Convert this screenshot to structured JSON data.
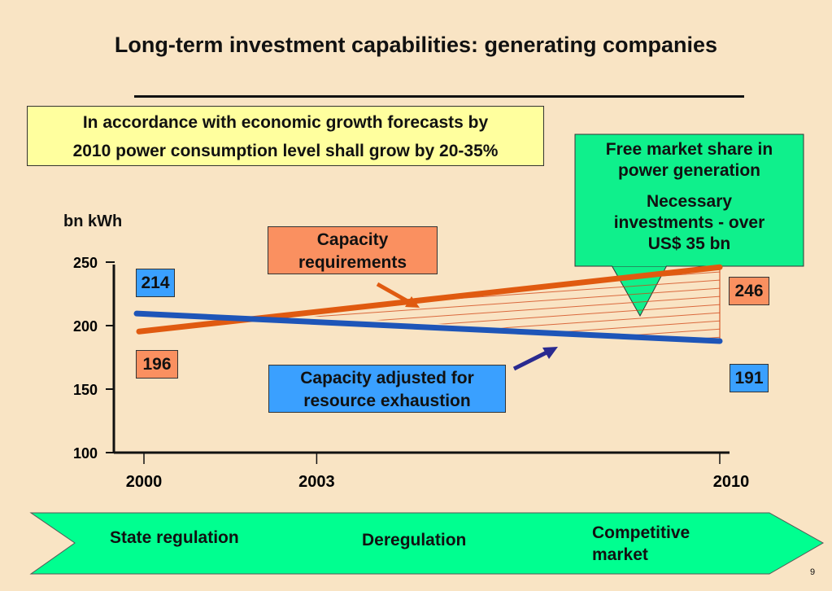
{
  "slide": {
    "title": "Long-term investment capabilities: generating companies",
    "note": {
      "line1": "In accordance with economic growth forecasts by",
      "line2": "2010 power consumption level shall grow by 20-35%"
    },
    "callout": {
      "line1": "Free market share in",
      "line2": "power generation",
      "line3": "Necessary",
      "line4": "investments - over",
      "line5": "US$ 35 bn"
    },
    "capacity_req_label": {
      "line1": "Capacity",
      "line2": "requirements"
    },
    "capacity_adj_label": {
      "line1": "Capacity adjusted for",
      "line2": "resource exhaustion"
    },
    "phases": {
      "state": "State regulation",
      "dereg": "Deregulation",
      "comp1": "Competitive",
      "comp2": "market"
    },
    "page_number": "9",
    "colors": {
      "requirements": "#e05a10",
      "adjusted": "#1e55b8",
      "callout_fill": "#0ff08c",
      "req_box": "#fa9060",
      "adj_box": "#3aa0ff",
      "arrow_band": "#00ff90"
    }
  },
  "chart_data": {
    "type": "line",
    "ylabel": "bn kWh",
    "xlabel": "",
    "x": [
      2000,
      2003,
      2010
    ],
    "x_ticks": [
      "2000",
      "2003",
      "2010"
    ],
    "y_ticks": [
      "250",
      "200",
      "150",
      "100"
    ],
    "ylim": [
      100,
      250
    ],
    "xlim": [
      2000,
      2010
    ],
    "series": [
      {
        "name": "Capacity requirements",
        "points": [
          [
            2000,
            196
          ],
          [
            2010,
            246
          ]
        ],
        "start_label": "196",
        "end_label": "246"
      },
      {
        "name": "Capacity adjusted for resource exhaustion",
        "points": [
          [
            2000,
            214
          ],
          [
            2010,
            191
          ]
        ],
        "start_label": "214",
        "end_label": "191"
      }
    ]
  }
}
